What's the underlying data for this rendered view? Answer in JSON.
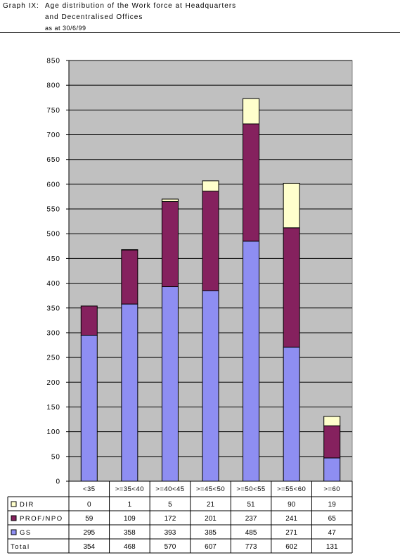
{
  "header": {
    "graph_label": "Graph IX:",
    "title_line1": "Age distribution of the Work force at Headquarters",
    "title_line2": "and Decentralised Offices",
    "subtitle": "as at 30/6/99"
  },
  "chart_data": {
    "type": "bar",
    "stacked": true,
    "title": "Age distribution of the Work force at Headquarters and Decentralised Offices",
    "subtitle": "as at 30/6/99",
    "categories": [
      "<35",
      ">=35<40",
      ">=40<45",
      ">=45<50",
      ">=50<55",
      ">=55<60",
      ">=60"
    ],
    "ylim": [
      0,
      850
    ],
    "yticks": [
      0,
      50,
      100,
      150,
      200,
      250,
      300,
      350,
      400,
      450,
      500,
      550,
      600,
      650,
      700,
      750,
      800,
      850
    ],
    "grid": true,
    "legend_placement": "data-table-bottom",
    "series": [
      {
        "name": "GS",
        "color": "#8e8ef2",
        "values": [
          295,
          358,
          393,
          385,
          485,
          271,
          47
        ]
      },
      {
        "name": "PROF/NPO",
        "color": "#85215e",
        "values": [
          59,
          109,
          172,
          201,
          237,
          241,
          65
        ]
      },
      {
        "name": "DIR",
        "color": "#ffffcc",
        "values": [
          0,
          1,
          5,
          21,
          51,
          90,
          19
        ]
      }
    ],
    "table_rows": [
      {
        "name": "DIR",
        "color": "#ffffcc",
        "values": [
          "0",
          "1",
          "5",
          "21",
          "51",
          "90",
          "19"
        ]
      },
      {
        "name": "PROF/NPO",
        "color": "#85215e",
        "values": [
          "59",
          "109",
          "172",
          "201",
          "237",
          "241",
          "65"
        ]
      },
      {
        "name": "GS",
        "color": "#8e8ef2",
        "values": [
          "295",
          "358",
          "393",
          "385",
          "485",
          "271",
          "47"
        ]
      },
      {
        "name": "Total",
        "color": "",
        "values": [
          "354",
          "468",
          "570",
          "607",
          "773",
          "602",
          "131"
        ]
      }
    ]
  }
}
